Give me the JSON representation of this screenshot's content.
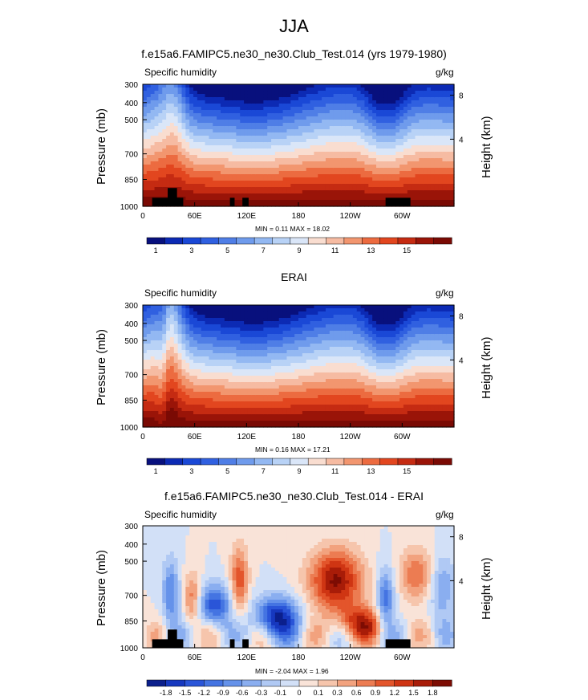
{
  "figure_title": "JJA",
  "panels": [
    {
      "title": "f.e15a6.FAMIPC5.ne30_ne30.Club_Test.014 (yrs 1979-1980)",
      "variable": "Specific humidity",
      "units": "g/kg",
      "minmax": "MIN =  0.11  MAX = 18.02",
      "ylabel": "Pressure (mb)",
      "ylabel_right": "Height (km)"
    },
    {
      "title": "ERAI",
      "variable": "Specific humidity",
      "units": "g/kg",
      "minmax": "MIN =  0.16  MAX = 17.21",
      "ylabel": "Pressure (mb)",
      "ylabel_right": "Height (km)"
    },
    {
      "title": "f.e15a6.FAMIPC5.ne30_ne30.Club_Test.014 - ERAI",
      "variable": "Specific humidity",
      "units": "g/kg",
      "minmax": "MIN = -2.04  MAX =  1.96",
      "ylabel": "Pressure (mb)",
      "ylabel_right": "Height (km)"
    }
  ],
  "chart_data": [
    {
      "type": "heatmap",
      "title": "f.e15a6.FAMIPC5.ne30_ne30.Club_Test.014 (yrs 1979-1980)",
      "xlabel": "",
      "ylabel": "Pressure (mb)",
      "x_ticks": [
        "0",
        "60E",
        "120E",
        "180",
        "120W",
        "60W"
      ],
      "y_ticks": [
        "300",
        "400",
        "500",
        "700",
        "850",
        "1000"
      ],
      "y_right_ticks": [
        "8",
        "4"
      ],
      "colorbar_ticks": [
        "1",
        "3",
        "5",
        "7",
        "9",
        "11",
        "13",
        "15"
      ],
      "min": 0.11,
      "max": 18.02
    },
    {
      "type": "heatmap",
      "title": "ERAI",
      "xlabel": "",
      "ylabel": "Pressure (mb)",
      "x_ticks": [
        "0",
        "60E",
        "120E",
        "180",
        "120W",
        "60W"
      ],
      "y_ticks": [
        "300",
        "400",
        "500",
        "700",
        "850",
        "1000"
      ],
      "y_right_ticks": [
        "8",
        "4"
      ],
      "colorbar_ticks": [
        "1",
        "3",
        "5",
        "7",
        "9",
        "11",
        "13",
        "15"
      ],
      "min": 0.16,
      "max": 17.21
    },
    {
      "type": "heatmap",
      "title": "f.e15a6.FAMIPC5.ne30_ne30.Club_Test.014 - ERAI",
      "xlabel": "",
      "ylabel": "Pressure (mb)",
      "x_ticks": [
        "0",
        "60E",
        "120E",
        "180",
        "120W",
        "60W"
      ],
      "y_ticks": [
        "300",
        "400",
        "500",
        "700",
        "850",
        "1000"
      ],
      "y_right_ticks": [
        "8",
        "4"
      ],
      "colorbar_ticks": [
        "-1.8",
        "-1.5",
        "-1.2",
        "-0.9",
        "-0.6",
        "-0.3",
        "-0.1",
        "0",
        "0.1",
        "0.3",
        "0.6",
        "0.9",
        "1.2",
        "1.5",
        "1.8"
      ],
      "min": -2.04,
      "max": 1.96
    }
  ],
  "colors": {
    "abs_levels": [
      "#08107d",
      "#0c2ab4",
      "#1a48d6",
      "#3060e0",
      "#4f7ee6",
      "#6f9bec",
      "#93b8f2",
      "#b8d2f6",
      "#dae6f8",
      "#f9ddd0",
      "#f6bba2",
      "#f2966f",
      "#ec6b40",
      "#e2461f",
      "#c52b12",
      "#9a1408",
      "#7a0a04"
    ],
    "diff_levels": [
      "#0b1f8c",
      "#1638bf",
      "#2a55d8",
      "#4474e2",
      "#6592ea",
      "#8aaef0",
      "#b0c9f4",
      "#d2e0f7",
      "#f9e3d8",
      "#f6c5ac",
      "#f2a27e",
      "#ec7c52",
      "#e3552b",
      "#cf3513",
      "#a81c08",
      "#7d0c03"
    ]
  }
}
